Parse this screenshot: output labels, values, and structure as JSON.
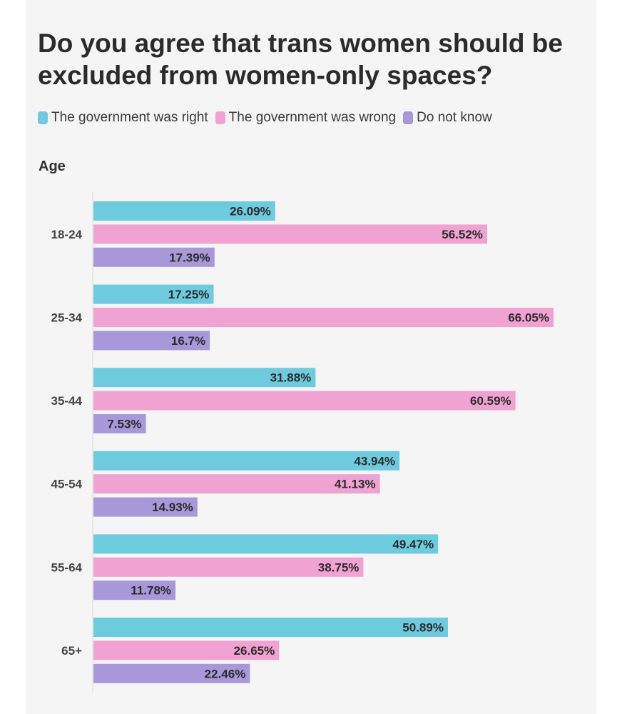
{
  "chart_data": {
    "type": "bar",
    "orientation": "horizontal",
    "title": "Do you agree that trans women should be excluded from women-only spaces?",
    "ylabel": "Age",
    "xlabel": "",
    "categories": [
      "18-24",
      "25-34",
      "35-44",
      "45-54",
      "55-64",
      "65+"
    ],
    "series": [
      {
        "name": "The government was right",
        "color": "#6ccbdd",
        "values": [
          26.09,
          17.25,
          31.88,
          43.94,
          49.47,
          50.89
        ],
        "labels": [
          "26.09%",
          "17.25%",
          "31.88%",
          "43.94%",
          "49.47%",
          "50.89%"
        ]
      },
      {
        "name": "The government was wrong",
        "color": "#f0a3d3",
        "values": [
          56.52,
          66.05,
          60.59,
          41.13,
          38.75,
          26.65
        ],
        "labels": [
          "56.52%",
          "66.05%",
          "60.59%",
          "41.13%",
          "38.75%",
          "26.65%"
        ]
      },
      {
        "name": "Do not know",
        "color": "#a897d9",
        "values": [
          17.39,
          16.7,
          7.53,
          14.93,
          11.78,
          22.46
        ],
        "labels": [
          "17.39%",
          "16.7%",
          "7.53%",
          "14.93%",
          "11.78%",
          "22.46%"
        ]
      }
    ],
    "xlim": [
      0,
      66.05
    ],
    "grid": false,
    "legend": "top-left"
  }
}
